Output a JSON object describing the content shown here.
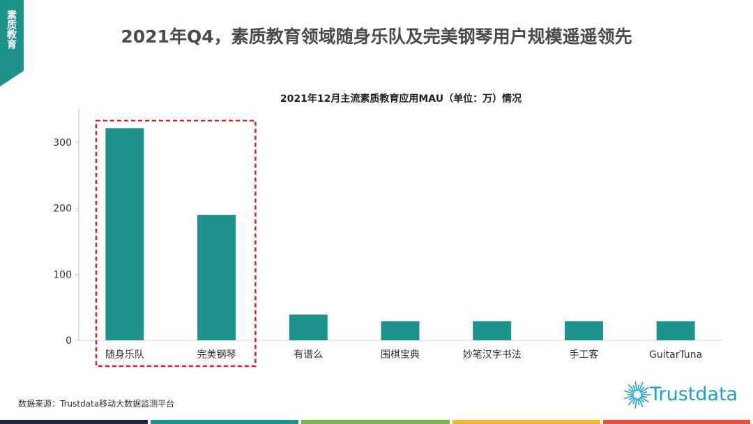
{
  "side_tab": {
    "label": "素质教育"
  },
  "page": {
    "title": "2021年Q4，素质教育领域随身乐队及完美钢琴用户规模遥遥领先",
    "source": "数据来源：Trustdata移动大数据监测平台",
    "brand": "Trustdata"
  },
  "colors": {
    "bar": "#1e938c",
    "highlight_box": "#e02020",
    "brand": "#1aa3c8",
    "bottom_bar": [
      "#1f2d3a",
      "#1e938c",
      "#7ab648",
      "#f2b632",
      "#e5533d"
    ]
  },
  "chart_data": {
    "type": "bar",
    "title": "2021年12月主流素质教育应用MAU（单位：万）情况",
    "categories": [
      "随身乐队",
      "完美钢琴",
      "有谱么",
      "围棋宝典",
      "妙笔汉字书法",
      "手工客",
      "GuitarTuna"
    ],
    "values": [
      321,
      190,
      39,
      29,
      29,
      29,
      29
    ],
    "ylim": [
      0,
      340
    ],
    "yticks": [
      0,
      100,
      200,
      300
    ],
    "grid": false,
    "highlighted_categories": [
      "随身乐队",
      "完美钢琴"
    ]
  }
}
